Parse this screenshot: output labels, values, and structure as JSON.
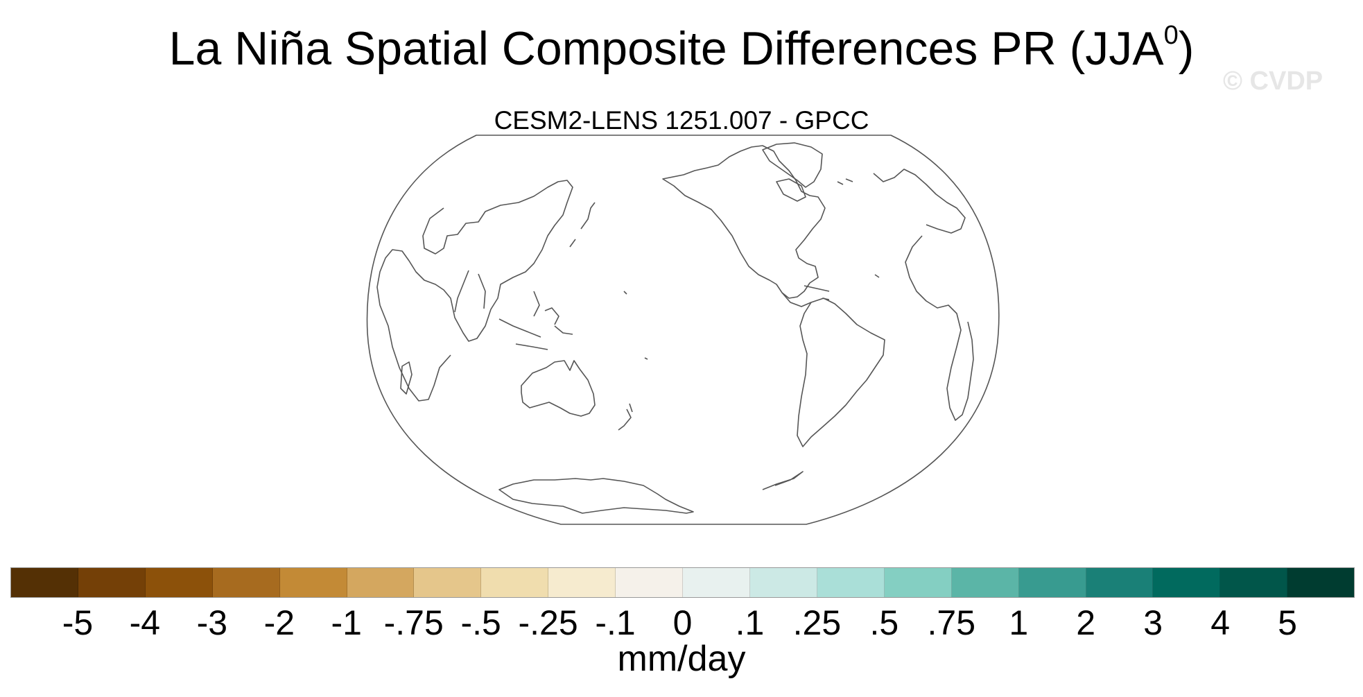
{
  "title_main": "La Niña Spatial Composite Differences PR (JJA",
  "title_sup": "0",
  "title_close": ")",
  "watermark": "© CVDP",
  "subtitle": "CESM2-LENS 1251.007 - GPCC",
  "colorbar": {
    "colors": [
      "#543005",
      "#744007",
      "#8c510a",
      "#a76b1f",
      "#c38a36",
      "#d4a75f",
      "#e5c68b",
      "#f0ddae",
      "#f6ebcf",
      "#f5f1ea",
      "#e8f1ef",
      "#cce9e5",
      "#aadfd8",
      "#84cfc2",
      "#5bb5a7",
      "#389b90",
      "#1a8077",
      "#016a5e",
      "#01564a",
      "#003c30"
    ],
    "tick_labels": [
      "-5",
      "-4",
      "-3",
      "-2",
      "-1",
      "-.75",
      "-.5",
      "-.25",
      "-.1",
      "0",
      ".1",
      ".25",
      ".5",
      ".75",
      "1",
      "2",
      "3",
      "4",
      "5"
    ],
    "units": "mm/day"
  }
}
